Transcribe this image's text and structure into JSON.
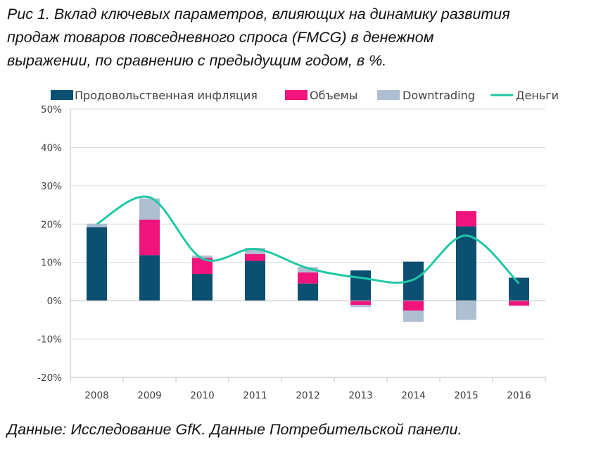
{
  "title_lines": [
    "Рис 1. Вклад ключевых параметров, влияющих на динамику развития",
    "продаж товаров повседневного спроса (FMCG) в денежном",
    "выражении, по сравнению с предыдущим годом, в %."
  ],
  "source": "Данные: Исследование GfK. Данные Потребительской панели.",
  "colors": {
    "inflation": "#0b4f71",
    "volumes": "#f0147c",
    "downtrading": "#aebfd1",
    "money": "#1dc9a4",
    "grid": "#d9d9d9",
    "axis": "#bfbfbf"
  },
  "chart_data": {
    "type": "bar",
    "stacked": true,
    "categories": [
      "2008",
      "2009",
      "2010",
      "2011",
      "2012",
      "2013",
      "2014",
      "2015",
      "2016"
    ],
    "series": [
      {
        "name": "Продовольственная инфляция",
        "kind": "bar",
        "values": [
          19.2,
          11.9,
          7.0,
          10.4,
          4.5,
          7.9,
          10.2,
          19.4,
          6.0
        ]
      },
      {
        "name": "Объемы",
        "kind": "bar",
        "values": [
          0.0,
          9.3,
          4.2,
          1.8,
          2.9,
          -1.1,
          -2.6,
          4.0,
          -1.3
        ]
      },
      {
        "name": "Downtrading",
        "kind": "bar",
        "values": [
          0.9,
          5.5,
          0.6,
          1.6,
          1.4,
          -0.6,
          -2.9,
          -5.0,
          0.0
        ]
      },
      {
        "name": "Деньги",
        "kind": "line",
        "values": [
          20.0,
          27.0,
          11.0,
          13.5,
          8.5,
          6.0,
          5.5,
          17.0,
          4.5
        ]
      }
    ],
    "y_ticks": [
      "50%",
      "40%",
      "30%",
      "20%",
      "10%",
      "0%",
      "-10%",
      "-20%"
    ],
    "ylim": [
      -20,
      50
    ],
    "xlabel": "",
    "ylabel": "",
    "grid": true,
    "legend_position": "top"
  }
}
